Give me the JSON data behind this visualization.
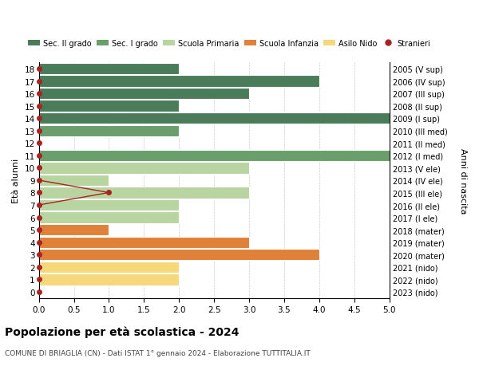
{
  "ages": [
    18,
    17,
    16,
    15,
    14,
    13,
    12,
    11,
    10,
    9,
    8,
    7,
    6,
    5,
    4,
    3,
    2,
    1,
    0
  ],
  "years": [
    "2005 (V sup)",
    "2006 (IV sup)",
    "2007 (III sup)",
    "2008 (II sup)",
    "2009 (I sup)",
    "2010 (III med)",
    "2011 (II med)",
    "2012 (I med)",
    "2013 (V ele)",
    "2014 (IV ele)",
    "2015 (III ele)",
    "2016 (II ele)",
    "2017 (I ele)",
    "2018 (mater)",
    "2019 (mater)",
    "2020 (mater)",
    "2021 (nido)",
    "2022 (nido)",
    "2023 (nido)"
  ],
  "bar_values": [
    2,
    4,
    3,
    2,
    5,
    2,
    0,
    5,
    3,
    1,
    3,
    2,
    2,
    1,
    3,
    4,
    2,
    2,
    0
  ],
  "bar_colors": [
    "#4a7c59",
    "#4a7c59",
    "#4a7c59",
    "#4a7c59",
    "#4a7c59",
    "#6a9e6a",
    "#6a9e6a",
    "#6a9e6a",
    "#b8d4a0",
    "#b8d4a0",
    "#b8d4a0",
    "#b8d4a0",
    "#b8d4a0",
    "#e0813a",
    "#e0813a",
    "#e0813a",
    "#f5d87a",
    "#f5d87a",
    "#f5d87a"
  ],
  "stranieri_color": "#aa2222",
  "stranieri_line_ages": [
    9,
    8,
    7
  ],
  "stranieri_line_values": [
    0,
    1,
    0
  ],
  "title": "Popolazione per età scolastica - 2024",
  "subtitle": "COMUNE DI BRIAGLIA (CN) - Dati ISTAT 1° gennaio 2024 - Elaborazione TUTTITALIA.IT",
  "ylabel": "Età alunni",
  "right_ylabel": "Anni di nascita",
  "xlim": [
    0,
    5.0
  ],
  "xticks": [
    0,
    0.5,
    1.0,
    1.5,
    2.0,
    2.5,
    3.0,
    3.5,
    4.0,
    4.5,
    5.0
  ],
  "legend_labels": [
    "Sec. II grado",
    "Sec. I grado",
    "Scuola Primaria",
    "Scuola Infanzia",
    "Asilo Nido",
    "Stranieri"
  ],
  "legend_colors": [
    "#4a7c59",
    "#6a9e6a",
    "#b8d4a0",
    "#e0813a",
    "#f5d87a",
    "#aa2222"
  ],
  "bg_color": "#ffffff",
  "grid_color": "#cccccc"
}
